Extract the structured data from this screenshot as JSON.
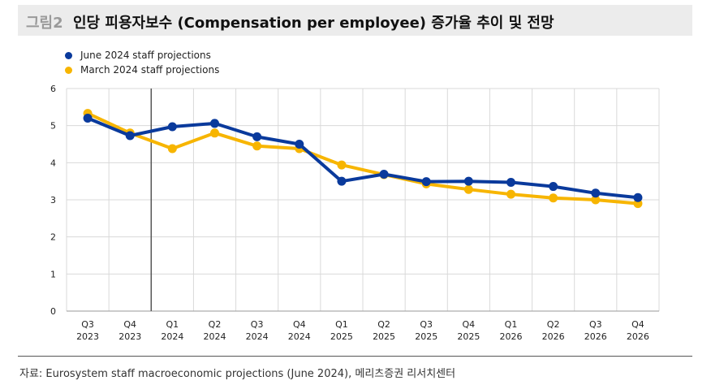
{
  "header": {
    "figure_tag": "그림2",
    "title": "인당 피용자보수 (Compensation per employee) 증가율 추이 및 전망"
  },
  "source": "자료: Eurosystem staff macroeconomic projections (June 2024), 메리츠증권 리서치센터",
  "chart_data": {
    "type": "line",
    "title": "",
    "xlabel": "",
    "ylabel": "",
    "ylim": [
      0,
      6
    ],
    "yticks": [
      "0",
      "1",
      "2",
      "3",
      "4",
      "5",
      "6"
    ],
    "grid": true,
    "legend_position": "top-left",
    "categories": [
      [
        "Q3",
        "2023"
      ],
      [
        "Q4",
        "2023"
      ],
      [
        "Q1",
        "2024"
      ],
      [
        "Q2",
        "2024"
      ],
      [
        "Q3",
        "2024"
      ],
      [
        "Q4",
        "2024"
      ],
      [
        "Q1",
        "2025"
      ],
      [
        "Q2",
        "2025"
      ],
      [
        "Q3",
        "2025"
      ],
      [
        "Q4",
        "2025"
      ],
      [
        "Q1",
        "2026"
      ],
      [
        "Q2",
        "2026"
      ],
      [
        "Q3",
        "2026"
      ],
      [
        "Q4",
        "2026"
      ]
    ],
    "divider_after_category_index": 1,
    "series": [
      {
        "name": "June 2024 staff projections",
        "color": "#0a3a9c",
        "values": [
          5.2,
          4.73,
          4.97,
          5.06,
          4.7,
          4.5,
          3.5,
          3.69,
          3.49,
          3.5,
          3.47,
          3.36,
          3.18,
          3.06
        ]
      },
      {
        "name": "March 2024 staff projections",
        "color": "#f7b500",
        "values": [
          5.33,
          4.8,
          4.38,
          4.8,
          4.45,
          4.38,
          3.94,
          3.68,
          3.43,
          3.28,
          3.15,
          3.05,
          3.0,
          2.9
        ]
      }
    ]
  }
}
